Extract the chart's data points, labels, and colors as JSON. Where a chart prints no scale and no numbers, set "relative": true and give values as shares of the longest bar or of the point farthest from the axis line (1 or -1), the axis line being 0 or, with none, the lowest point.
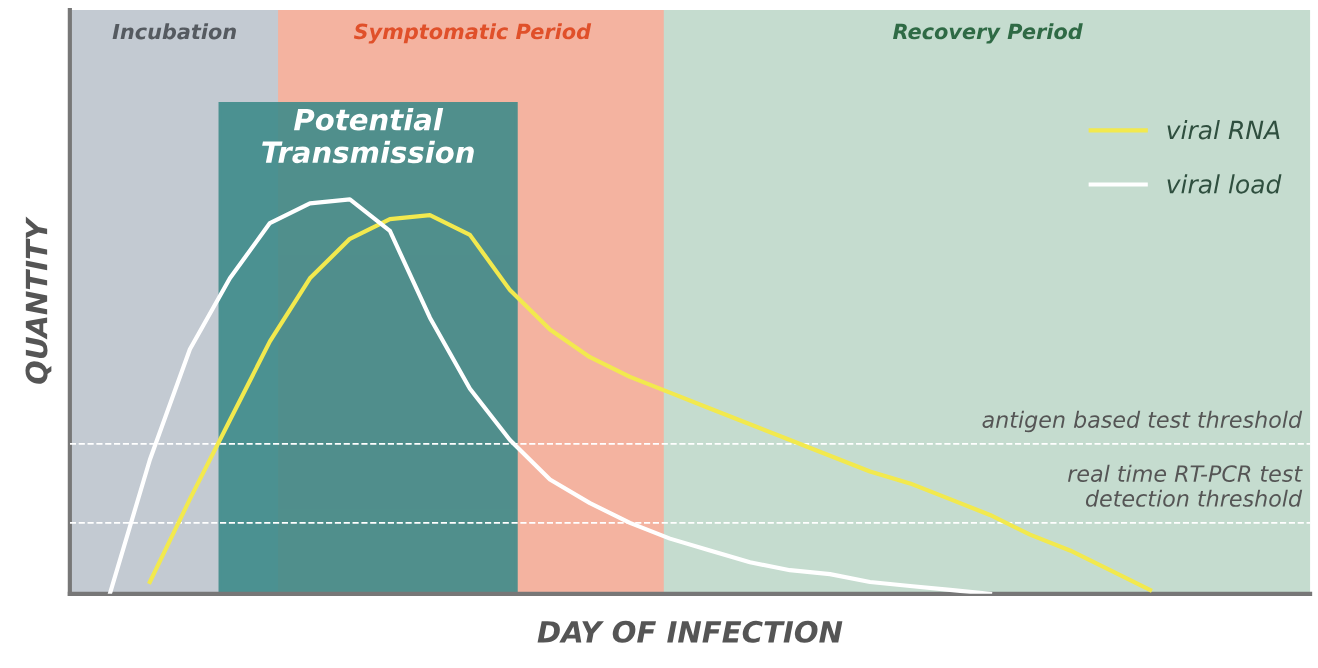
{
  "chart_data": {
    "type": "line",
    "relative": true,
    "xlabel": "DAY OF INFECTION",
    "ylabel": "QUANTITY",
    "categories": [
      null,
      null,
      null,
      null,
      null,
      null,
      null,
      null,
      null,
      null,
      null,
      null,
      null,
      null,
      null,
      null,
      null,
      null,
      null,
      null,
      null,
      null,
      null,
      null,
      null,
      null,
      null,
      null,
      null,
      null,
      null,
      null
    ],
    "series": [
      {
        "name": "viral RNA",
        "color": "#f2e94e",
        "values": [
          null,
          null,
          0.03,
          0.24,
          0.44,
          0.64,
          0.8,
          0.9,
          0.95,
          0.96,
          0.91,
          0.77,
          0.67,
          0.6,
          0.55,
          0.51,
          0.47,
          0.43,
          0.39,
          0.35,
          0.31,
          0.28,
          0.24,
          0.2,
          0.15,
          0.11,
          0.06,
          0.01,
          null,
          null,
          null,
          null
        ]
      },
      {
        "name": "viral load",
        "color": "#ffffff",
        "values": [
          null,
          0,
          0.34,
          0.62,
          0.8,
          0.94,
          0.99,
          1.0,
          0.92,
          0.7,
          0.52,
          0.39,
          0.29,
          0.23,
          0.18,
          0.14,
          0.11,
          0.08,
          0.06,
          0.05,
          0.03,
          0.02,
          0.01,
          0,
          null,
          null,
          null,
          null,
          null,
          null,
          null,
          null
        ]
      }
    ],
    "annotations": [
      "Incubation",
      "Symptomatic Period",
      "Recovery Period",
      "Potential\nTransmission"
    ],
    "ref_lines": [
      {
        "axis": "y",
        "value": 0.38,
        "label": "antigen based test threshold",
        "line_style": "dashed",
        "color": "#ffffff"
      },
      {
        "axis": "y",
        "value": 0.18,
        "label": "real time RT-PCR test\ndetection threshold",
        "line_style": "dashed",
        "color": "#ffffff"
      }
    ],
    "legend": "top right",
    "grid": false,
    "marker": "none",
    "line_style": "solid"
  }
}
